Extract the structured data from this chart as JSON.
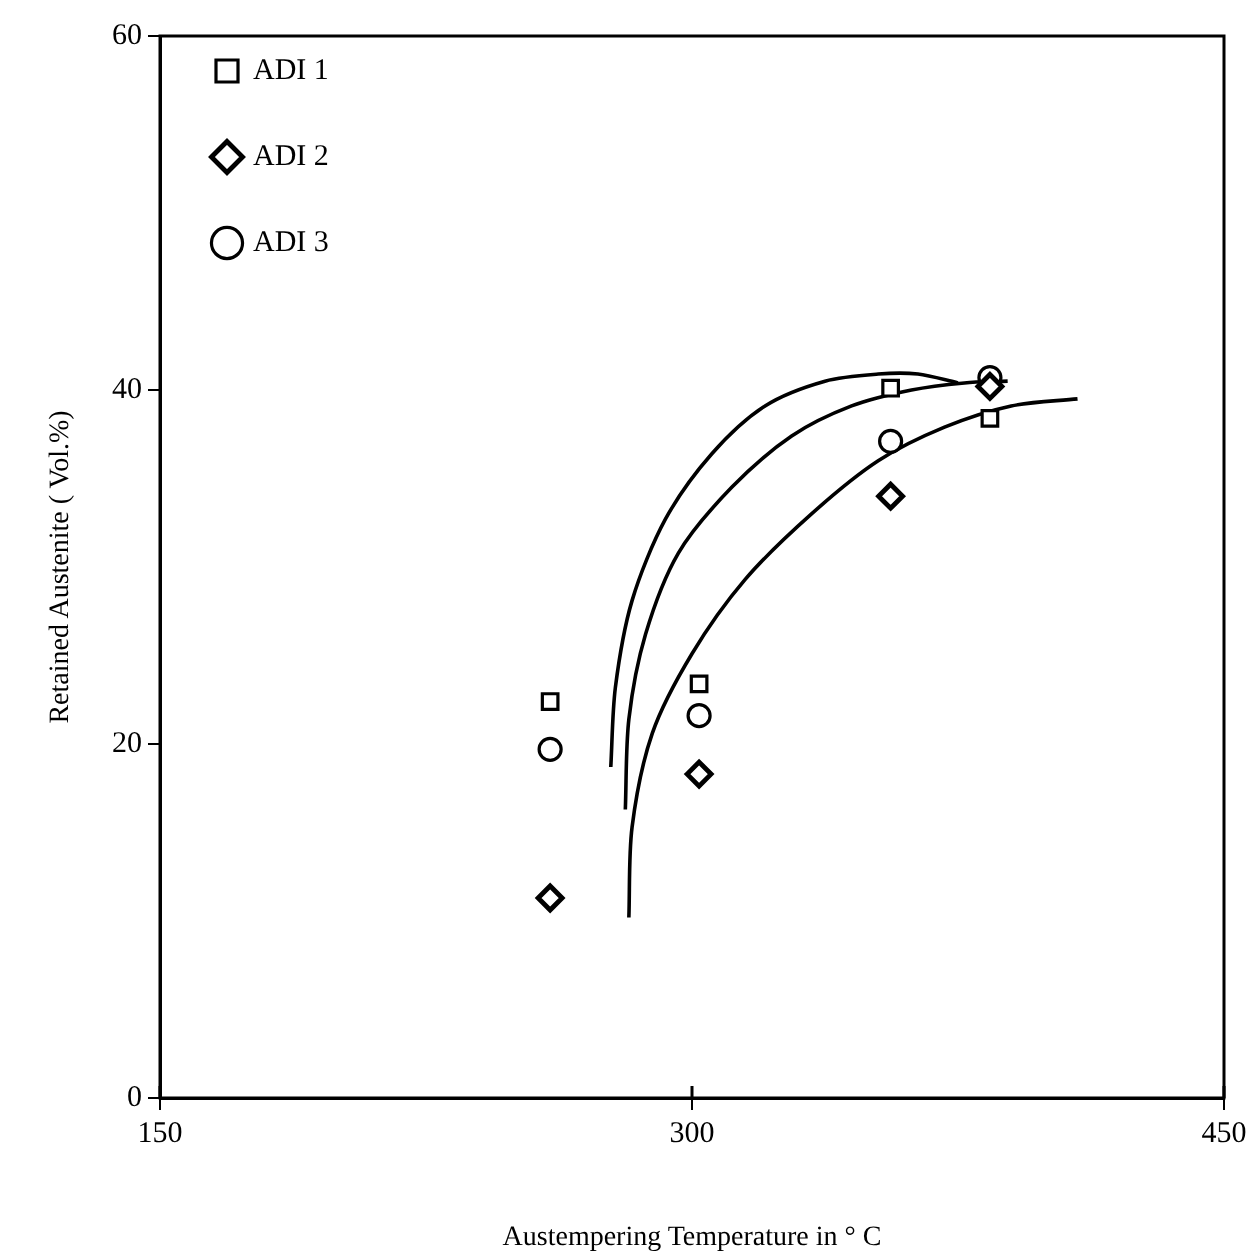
{
  "chart_data": {
    "type": "scatter",
    "xlabel": "Austempering Temperature in ° C",
    "ylabel": "Retained Austenite ( Vol.%)",
    "xlim": [
      150,
      450
    ],
    "xticks": [
      150,
      300,
      450
    ],
    "ylim": [
      0,
      60
    ],
    "yticks": [
      0,
      20,
      40,
      60
    ],
    "grid": false,
    "legend": "top left",
    "series": [
      {
        "name": "ADI 1",
        "color": "#000000",
        "marker": "square",
        "x": [
          260,
          302,
          356,
          384
        ],
        "values": [
          22.4,
          23.4,
          40.1,
          38.4
        ]
      },
      {
        "name": "ADI 2",
        "color": "#000000",
        "marker": "diamond",
        "x": [
          260,
          302,
          356,
          384
        ],
        "values": [
          11.3,
          18.3,
          34.0,
          40.2
        ]
      },
      {
        "name": "ADI 3",
        "color": "#000000",
        "marker": "circle",
        "x": [
          260,
          302,
          356,
          384
        ],
        "values": [
          19.7,
          21.6,
          37.1,
          40.7
        ]
      },
      {
        "type": "line",
        "color": "#000000",
        "marker": "none",
        "x": [
          277.1,
          278.4,
          283.1,
          292.5,
          305.6,
          320.6,
          337.5,
          352.5,
          363.7,
          375
        ],
        "values": [
          18.7,
          23.2,
          28.1,
          32.7,
          36.4,
          39.1,
          40.5,
          40.9,
          40.9,
          40.4
        ]
      },
      {
        "type": "line",
        "color": "#000000",
        "marker": "none",
        "x": [
          281.2,
          282.2,
          286.9,
          296.2,
          311.2,
          328.1,
          345,
          361.9,
          376.8,
          389
        ],
        "values": [
          16.3,
          21.4,
          26.2,
          30.8,
          34.5,
          37.4,
          39.1,
          40.0,
          40.4,
          40.5
        ]
      },
      {
        "type": "line",
        "color": "#000000",
        "marker": "none",
        "x": [
          282.2,
          283.1,
          288.8,
          300,
          315,
          333.7,
          352.5,
          371.2,
          390,
          408.7
        ],
        "values": [
          10.2,
          15.3,
          20.6,
          25.1,
          29.3,
          33.0,
          36.0,
          37.9,
          39.1,
          39.5
        ]
      }
    ]
  }
}
